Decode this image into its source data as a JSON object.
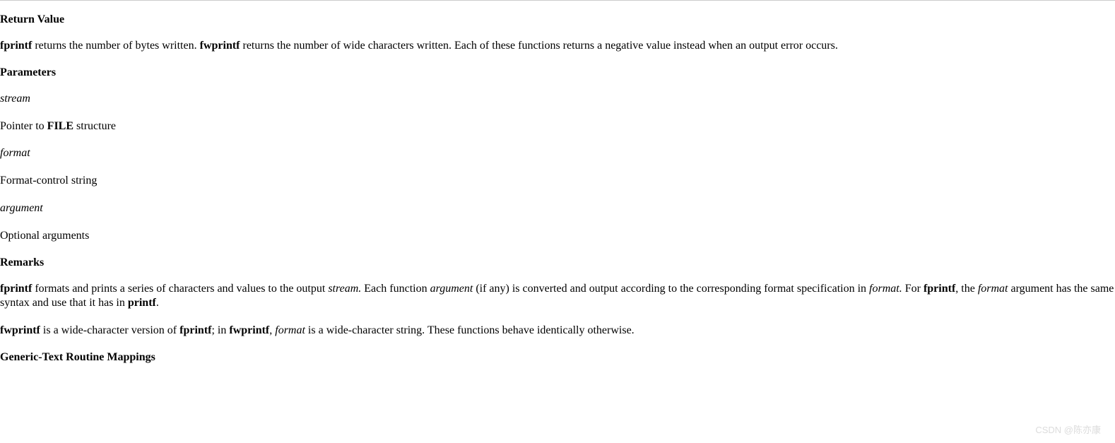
{
  "sections": {
    "returnValue": {
      "heading": "Return Value",
      "p1_b1": "fprintf",
      "p1_t1": " returns the number of bytes written. ",
      "p1_b2": "fwprintf",
      "p1_t2": " returns the number of wide characters written. Each of these functions returns a negative value instead when an output error occurs."
    },
    "parameters": {
      "heading": "Parameters",
      "param1_name": "stream",
      "param1_desc_pre": "Pointer to ",
      "param1_desc_b": "FILE",
      "param1_desc_post": " structure",
      "param2_name": "format",
      "param2_desc": "Format-control string",
      "param3_name": "argument",
      "param3_desc": "Optional arguments"
    },
    "remarks": {
      "heading": "Remarks",
      "p1_b1": "fprintf",
      "p1_t1": " formats and prints a series of characters and values to the output ",
      "p1_i1": "stream.",
      "p1_t2": " Each function ",
      "p1_i2": "argument",
      "p1_t3": " (if any) is converted and output according to the corresponding format specification in ",
      "p1_i3": "format.",
      "p1_t4": " For ",
      "p1_b2": "fprintf",
      "p1_t5": ", the ",
      "p1_i4": "format",
      "p1_t6": " argument has the same syntax and use that it has in ",
      "p1_b3": "printf",
      "p1_t7": ".",
      "p2_b1": "fwprintf",
      "p2_t1": " is a wide-character version of ",
      "p2_b2": "fprintf",
      "p2_t2": "; in ",
      "p2_b3": "fwprintf",
      "p2_t3": ", ",
      "p2_i1": "format",
      "p2_t4": " is a wide-character string. These functions behave identically otherwise."
    },
    "mappings": {
      "heading": "Generic-Text Routine Mappings"
    }
  },
  "watermark": "CSDN @陈亦康"
}
